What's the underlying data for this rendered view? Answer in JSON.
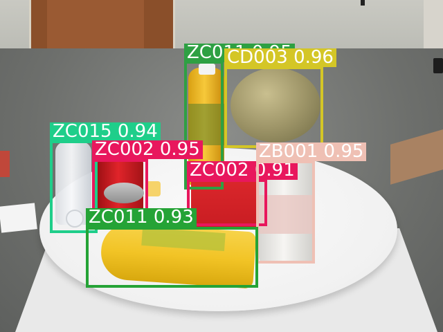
{
  "detections": [
    {
      "label": "ZC011 0.95",
      "class_id": "ZC011",
      "score": 0.95,
      "color": "#2ea043"
    },
    {
      "label": "CD003 0.96",
      "class_id": "CD003",
      "score": 0.96,
      "color": "#d4c626"
    },
    {
      "label": "ZC015 0.94",
      "class_id": "ZC015",
      "score": 0.94,
      "color": "#1fce8a"
    },
    {
      "label": "ZC002 0.95",
      "class_id": "ZC002",
      "score": 0.95,
      "color": "#e8175d"
    },
    {
      "label": "ZC002 0.91",
      "class_id": "ZC002",
      "score": 0.91,
      "color": "#e8175d"
    },
    {
      "label": "ZB001 0.95",
      "class_id": "ZB001",
      "score": 0.95,
      "color": "#efc0b4"
    },
    {
      "label": "ZC011 0.93",
      "class_id": "ZC011",
      "score": 0.93,
      "color": "#25a336"
    }
  ]
}
